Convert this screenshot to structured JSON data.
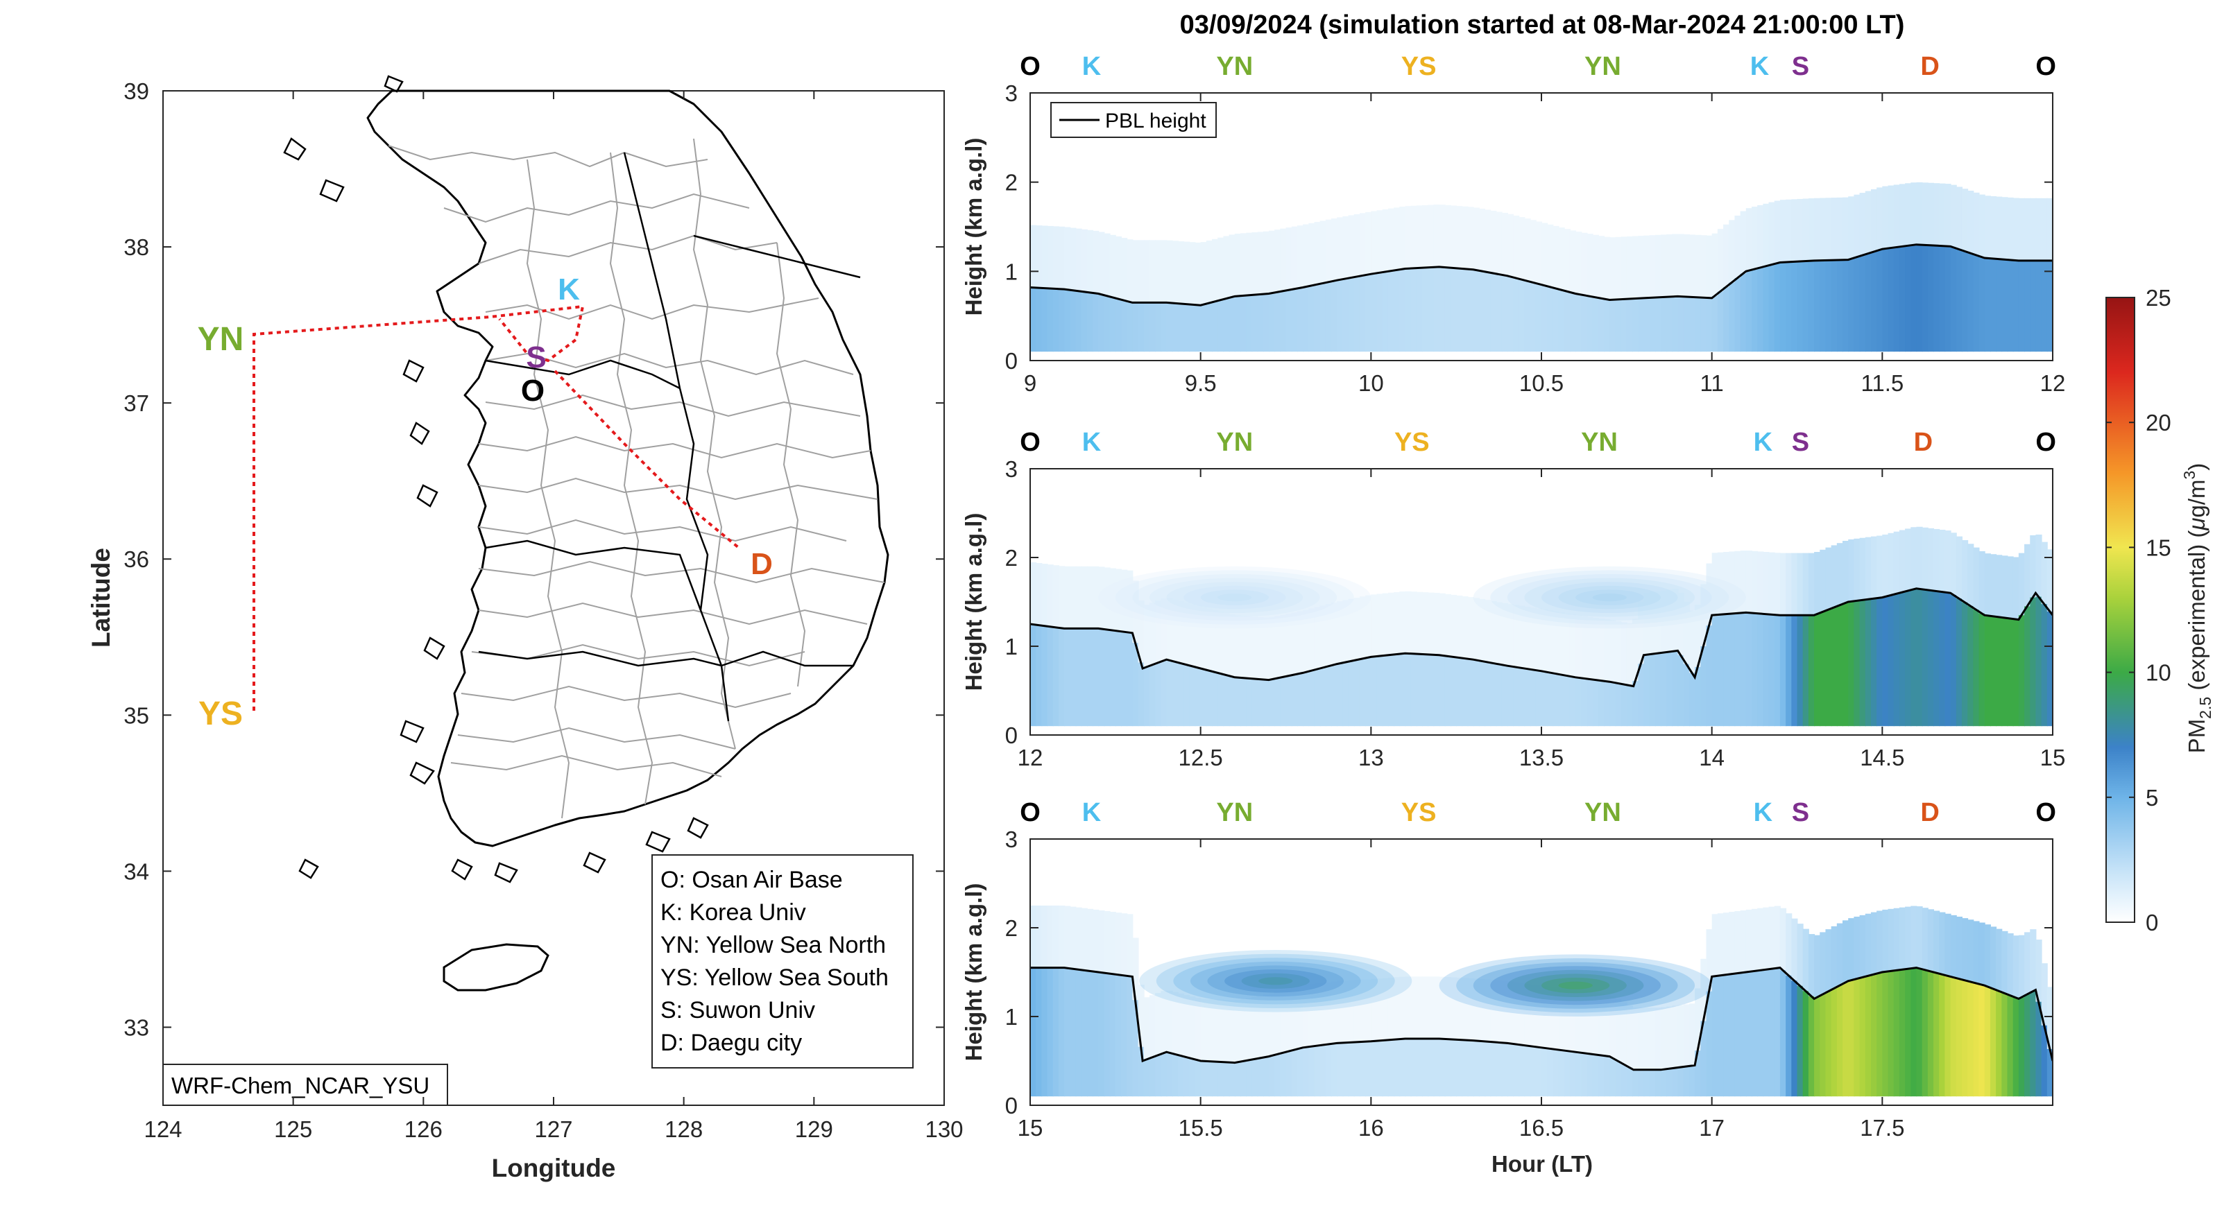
{
  "chart_data": [
    {
      "type": "map",
      "title": "",
      "xlabel": "Longitude",
      "ylabel": "Latitude",
      "xlim": [
        124,
        130
      ],
      "ylim": [
        32.5,
        39
      ],
      "xticks": [
        124,
        125,
        126,
        127,
        128,
        129,
        130
      ],
      "yticks": [
        33,
        34,
        35,
        36,
        37,
        38,
        39
      ],
      "model_label": "WRF-Chem_NCAR_YSU",
      "sites": [
        {
          "code": "O",
          "lon": 127.03,
          "lat": 37.09,
          "color": "#000000"
        },
        {
          "code": "K",
          "lon": 127.03,
          "lat": 37.59,
          "color": "#4DBEEE"
        },
        {
          "code": "S",
          "lon": 126.97,
          "lat": 37.21,
          "color": "#7E2F8E"
        },
        {
          "code": "D",
          "lon": 128.6,
          "lat": 35.87,
          "color": "#D95319"
        },
        {
          "code": "YN",
          "lon": 124.7,
          "lat": 37.45,
          "color": "#77AC30"
        },
        {
          "code": "YS",
          "lon": 124.7,
          "lat": 35.05,
          "color": "#EDB120"
        }
      ],
      "flight_track": [
        [
          127.2,
          37.1
        ],
        [
          127.3,
          37.65
        ],
        [
          126.7,
          37.55
        ],
        [
          124.7,
          37.45
        ],
        [
          124.7,
          35.05
        ]
      ],
      "flight_track_2": [
        [
          127.1,
          37.3
        ],
        [
          128.4,
          36.1
        ]
      ],
      "legend": [
        "O: Osan Air Base",
        "K: Korea Univ",
        "YN: Yellow Sea North",
        "YS: Yellow Sea South",
        "S: Suwon Univ",
        "D: Daegu city"
      ]
    },
    {
      "type": "heatmap",
      "title": "03/09/2024 (simulation started at 08-Mar-2024 21:00:00 LT)",
      "xlabel": "Hour (LT)",
      "ylabel": "Height (km a.g.l)",
      "colorbar": {
        "label": "PM2.5 (experimental) (μg/m3)",
        "range": [
          0,
          25
        ],
        "ticks": [
          0,
          5,
          10,
          15,
          20,
          25
        ]
      },
      "series_name": "PBL height",
      "panels": [
        {
          "xlim": [
            9,
            12
          ],
          "ylim": [
            0,
            3
          ],
          "xticks": [
            "9",
            "9.5",
            "10",
            "10.5",
            "11",
            "11.5",
            "12"
          ],
          "yticks": [
            "0",
            "1",
            "2",
            "3"
          ],
          "site_labels": [
            {
              "code": "O",
              "x": 9.0
            },
            {
              "code": "K",
              "x": 9.18
            },
            {
              "code": "YN",
              "x": 9.6
            },
            {
              "code": "YS",
              "x": 10.14
            },
            {
              "code": "YN",
              "x": 10.68
            },
            {
              "code": "K",
              "x": 11.14
            },
            {
              "code": "S",
              "x": 11.26
            },
            {
              "code": "D",
              "x": 11.64
            },
            {
              "code": "O",
              "x": 11.98
            }
          ],
          "pbl": [
            [
              9.0,
              0.82
            ],
            [
              9.1,
              0.8
            ],
            [
              9.2,
              0.75
            ],
            [
              9.3,
              0.65
            ],
            [
              9.4,
              0.65
            ],
            [
              9.5,
              0.62
            ],
            [
              9.6,
              0.72
            ],
            [
              9.7,
              0.75
            ],
            [
              9.8,
              0.82
            ],
            [
              9.9,
              0.9
            ],
            [
              10.0,
              0.97
            ],
            [
              10.1,
              1.03
            ],
            [
              10.2,
              1.05
            ],
            [
              10.3,
              1.02
            ],
            [
              10.4,
              0.95
            ],
            [
              10.5,
              0.85
            ],
            [
              10.6,
              0.75
            ],
            [
              10.7,
              0.68
            ],
            [
              10.8,
              0.7
            ],
            [
              10.9,
              0.72
            ],
            [
              11.0,
              0.7
            ],
            [
              11.1,
              1.0
            ],
            [
              11.2,
              1.1
            ],
            [
              11.3,
              1.12
            ],
            [
              11.4,
              1.13
            ],
            [
              11.5,
              1.25
            ],
            [
              11.6,
              1.3
            ],
            [
              11.7,
              1.28
            ],
            [
              11.8,
              1.15
            ],
            [
              11.9,
              1.12
            ],
            [
              12.0,
              1.12
            ]
          ],
          "pm_columns": [
            [
              9.0,
              4.5
            ],
            [
              9.2,
              3.5
            ],
            [
              9.4,
              3
            ],
            [
              9.6,
              3
            ],
            [
              9.8,
              2.8
            ],
            [
              10.0,
              2.5
            ],
            [
              10.2,
              2.3
            ],
            [
              10.4,
              2.3
            ],
            [
              10.6,
              2.5
            ],
            [
              10.8,
              2.8
            ],
            [
              11.0,
              3
            ],
            [
              11.1,
              4
            ],
            [
              11.2,
              5
            ],
            [
              11.3,
              5.5
            ],
            [
              11.4,
              6
            ],
            [
              11.5,
              6.5
            ],
            [
              11.6,
              7
            ],
            [
              11.7,
              6.5
            ],
            [
              11.8,
              6
            ],
            [
              11.9,
              6
            ],
            [
              12.0,
              6
            ]
          ],
          "plumes": []
        },
        {
          "xlim": [
            12,
            15
          ],
          "ylim": [
            0,
            3
          ],
          "xticks": [
            "12",
            "12.5",
            "13",
            "13.5",
            "14",
            "14.5",
            "15"
          ],
          "yticks": [
            "0",
            "1",
            "2",
            "3"
          ],
          "site_labels": [
            {
              "code": "O",
              "x": 12.0
            },
            {
              "code": "K",
              "x": 12.18
            },
            {
              "code": "YN",
              "x": 12.6
            },
            {
              "code": "YS",
              "x": 13.12
            },
            {
              "code": "YN",
              "x": 13.67
            },
            {
              "code": "K",
              "x": 14.15
            },
            {
              "code": "S",
              "x": 14.26
            },
            {
              "code": "D",
              "x": 14.62
            },
            {
              "code": "O",
              "x": 14.98
            }
          ],
          "pbl": [
            [
              12.0,
              1.25
            ],
            [
              12.1,
              1.2
            ],
            [
              12.2,
              1.2
            ],
            [
              12.3,
              1.15
            ],
            [
              12.33,
              0.75
            ],
            [
              12.4,
              0.85
            ],
            [
              12.5,
              0.75
            ],
            [
              12.6,
              0.65
            ],
            [
              12.7,
              0.62
            ],
            [
              12.8,
              0.7
            ],
            [
              12.9,
              0.8
            ],
            [
              13.0,
              0.88
            ],
            [
              13.1,
              0.92
            ],
            [
              13.2,
              0.9
            ],
            [
              13.3,
              0.85
            ],
            [
              13.4,
              0.78
            ],
            [
              13.5,
              0.72
            ],
            [
              13.6,
              0.65
            ],
            [
              13.7,
              0.6
            ],
            [
              13.77,
              0.55
            ],
            [
              13.8,
              0.9
            ],
            [
              13.9,
              0.95
            ],
            [
              13.95,
              0.65
            ],
            [
              14.0,
              1.35
            ],
            [
              14.1,
              1.38
            ],
            [
              14.2,
              1.35
            ],
            [
              14.3,
              1.35
            ],
            [
              14.4,
              1.5
            ],
            [
              14.5,
              1.55
            ],
            [
              14.6,
              1.65
            ],
            [
              14.7,
              1.6
            ],
            [
              14.8,
              1.35
            ],
            [
              14.9,
              1.3
            ],
            [
              14.95,
              1.6
            ],
            [
              15.0,
              1.35
            ]
          ],
          "pm_columns": [
            [
              12.0,
              4
            ],
            [
              12.1,
              3
            ],
            [
              12.2,
              3
            ],
            [
              12.3,
              3
            ],
            [
              12.4,
              2.5
            ],
            [
              12.6,
              2.5
            ],
            [
              12.8,
              2.5
            ],
            [
              13.0,
              2.5
            ],
            [
              13.2,
              2.5
            ],
            [
              13.4,
              2.5
            ],
            [
              13.6,
              2.5
            ],
            [
              13.8,
              3
            ],
            [
              14.0,
              3.5
            ],
            [
              14.1,
              3.5
            ],
            [
              14.2,
              4
            ],
            [
              14.3,
              10
            ],
            [
              14.4,
              10
            ],
            [
              14.5,
              7
            ],
            [
              14.6,
              8
            ],
            [
              14.7,
              7
            ],
            [
              14.8,
              10
            ],
            [
              14.9,
              10
            ],
            [
              15.0,
              7
            ]
          ],
          "plumes": [
            [
              12.6,
              1.55,
              2.5
            ],
            [
              13.7,
              1.55,
              3.5
            ]
          ]
        },
        {
          "xlim": [
            15,
            18
          ],
          "ylim": [
            0,
            3
          ],
          "xticks": [
            "15",
            "15.5",
            "16",
            "16.5",
            "17",
            "17.5"
          ],
          "yticks": [
            "0",
            "1",
            "2",
            "3"
          ],
          "site_labels": [
            {
              "code": "O",
              "x": 15.0
            },
            {
              "code": "K",
              "x": 15.18
            },
            {
              "code": "YN",
              "x": 15.6
            },
            {
              "code": "YS",
              "x": 16.14
            },
            {
              "code": "YN",
              "x": 16.68
            },
            {
              "code": "K",
              "x": 17.15
            },
            {
              "code": "S",
              "x": 17.26
            },
            {
              "code": "D",
              "x": 17.64
            },
            {
              "code": "O",
              "x": 17.98
            }
          ],
          "pbl": [
            [
              15.0,
              1.55
            ],
            [
              15.1,
              1.55
            ],
            [
              15.2,
              1.5
            ],
            [
              15.3,
              1.45
            ],
            [
              15.33,
              0.5
            ],
            [
              15.4,
              0.6
            ],
            [
              15.5,
              0.5
            ],
            [
              15.6,
              0.48
            ],
            [
              15.7,
              0.55
            ],
            [
              15.8,
              0.65
            ],
            [
              15.9,
              0.7
            ],
            [
              16.0,
              0.72
            ],
            [
              16.1,
              0.75
            ],
            [
              16.2,
              0.75
            ],
            [
              16.3,
              0.73
            ],
            [
              16.4,
              0.7
            ],
            [
              16.5,
              0.65
            ],
            [
              16.6,
              0.6
            ],
            [
              16.7,
              0.55
            ],
            [
              16.77,
              0.4
            ],
            [
              16.85,
              0.4
            ],
            [
              16.95,
              0.45
            ],
            [
              17.0,
              1.45
            ],
            [
              17.1,
              1.5
            ],
            [
              17.2,
              1.55
            ],
            [
              17.3,
              1.2
            ],
            [
              17.4,
              1.4
            ],
            [
              17.5,
              1.5
            ],
            [
              17.6,
              1.55
            ],
            [
              17.7,
              1.45
            ],
            [
              17.8,
              1.35
            ],
            [
              17.9,
              1.2
            ],
            [
              17.95,
              1.3
            ],
            [
              18.0,
              0.5
            ]
          ],
          "pm_columns": [
            [
              15.0,
              5
            ],
            [
              15.1,
              3.5
            ],
            [
              15.2,
              3.5
            ],
            [
              15.3,
              3
            ],
            [
              15.5,
              2.5
            ],
            [
              15.7,
              2.5
            ],
            [
              15.9,
              2
            ],
            [
              16.1,
              2
            ],
            [
              16.3,
              2
            ],
            [
              16.5,
              2
            ],
            [
              16.7,
              2.5
            ],
            [
              16.9,
              3
            ],
            [
              17.0,
              3.5
            ],
            [
              17.1,
              3.5
            ],
            [
              17.2,
              3.5
            ],
            [
              17.3,
              12
            ],
            [
              17.4,
              14
            ],
            [
              17.5,
              12
            ],
            [
              17.6,
              10
            ],
            [
              17.7,
              14
            ],
            [
              17.8,
              15
            ],
            [
              17.9,
              10
            ],
            [
              18.0,
              6
            ]
          ],
          "plumes": [
            [
              15.72,
              1.4,
              9
            ],
            [
              16.6,
              1.35,
              11
            ]
          ]
        }
      ]
    }
  ]
}
